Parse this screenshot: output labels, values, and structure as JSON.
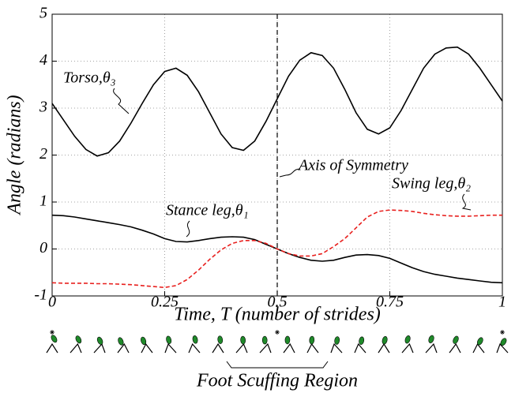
{
  "chart_data": {
    "type": "line",
    "xlabel": "Time, T (number of strides)",
    "ylabel": "Angle (radians)",
    "x": [
      0,
      0.025,
      0.05,
      0.075,
      0.1,
      0.125,
      0.15,
      0.175,
      0.2,
      0.225,
      0.25,
      0.275,
      0.3,
      0.325,
      0.35,
      0.375,
      0.4,
      0.425,
      0.45,
      0.475,
      0.5,
      0.525,
      0.55,
      0.575,
      0.6,
      0.625,
      0.65,
      0.675,
      0.7,
      0.725,
      0.75,
      0.775,
      0.8,
      0.825,
      0.85,
      0.875,
      0.9,
      0.925,
      0.95,
      0.975,
      1
    ],
    "series": [
      {
        "name": "Torso,θ₃",
        "color": "#000000",
        "dash": false,
        "values": [
          3.1,
          2.75,
          2.4,
          2.12,
          1.98,
          2.05,
          2.3,
          2.68,
          3.1,
          3.5,
          3.78,
          3.85,
          3.7,
          3.35,
          2.9,
          2.45,
          2.16,
          2.1,
          2.3,
          2.72,
          3.2,
          3.68,
          4.02,
          4.18,
          4.12,
          3.85,
          3.4,
          2.9,
          2.55,
          2.45,
          2.58,
          2.95,
          3.4,
          3.85,
          4.15,
          4.28,
          4.3,
          4.15,
          3.85,
          3.5,
          3.15
        ]
      },
      {
        "name": "Stance leg,θ₁",
        "color": "#000000",
        "dash": false,
        "values": [
          0.72,
          0.71,
          0.68,
          0.64,
          0.6,
          0.56,
          0.52,
          0.47,
          0.4,
          0.32,
          0.22,
          0.16,
          0.15,
          0.18,
          0.22,
          0.25,
          0.26,
          0.25,
          0.2,
          0.1,
          0.0,
          -0.1,
          -0.18,
          -0.24,
          -0.26,
          -0.24,
          -0.18,
          -0.13,
          -0.12,
          -0.14,
          -0.2,
          -0.3,
          -0.4,
          -0.48,
          -0.54,
          -0.58,
          -0.62,
          -0.65,
          -0.68,
          -0.71,
          -0.72
        ]
      },
      {
        "name": "Swing leg,θ₂",
        "color": "#e8201e",
        "dash": true,
        "values": [
          -0.72,
          -0.73,
          -0.73,
          -0.73,
          -0.74,
          -0.74,
          -0.75,
          -0.76,
          -0.78,
          -0.8,
          -0.82,
          -0.78,
          -0.65,
          -0.45,
          -0.22,
          -0.02,
          0.12,
          0.18,
          0.18,
          0.12,
          0.0,
          -0.1,
          -0.15,
          -0.15,
          -0.1,
          0.05,
          0.22,
          0.45,
          0.68,
          0.8,
          0.83,
          0.82,
          0.8,
          0.76,
          0.73,
          0.71,
          0.7,
          0.7,
          0.71,
          0.72,
          0.72
        ]
      }
    ],
    "axis_of_symmetry": {
      "x": 0.5,
      "label": "Axis of Symmetry"
    },
    "xlim": [
      0,
      1
    ],
    "xticks": [
      0,
      0.25,
      0.5,
      0.75,
      1
    ],
    "ylim": [
      -1,
      5
    ],
    "yticks": [
      -1,
      0,
      1,
      2,
      3,
      4,
      5
    ],
    "grid": true,
    "caption": "Foot Scuffing Region"
  }
}
